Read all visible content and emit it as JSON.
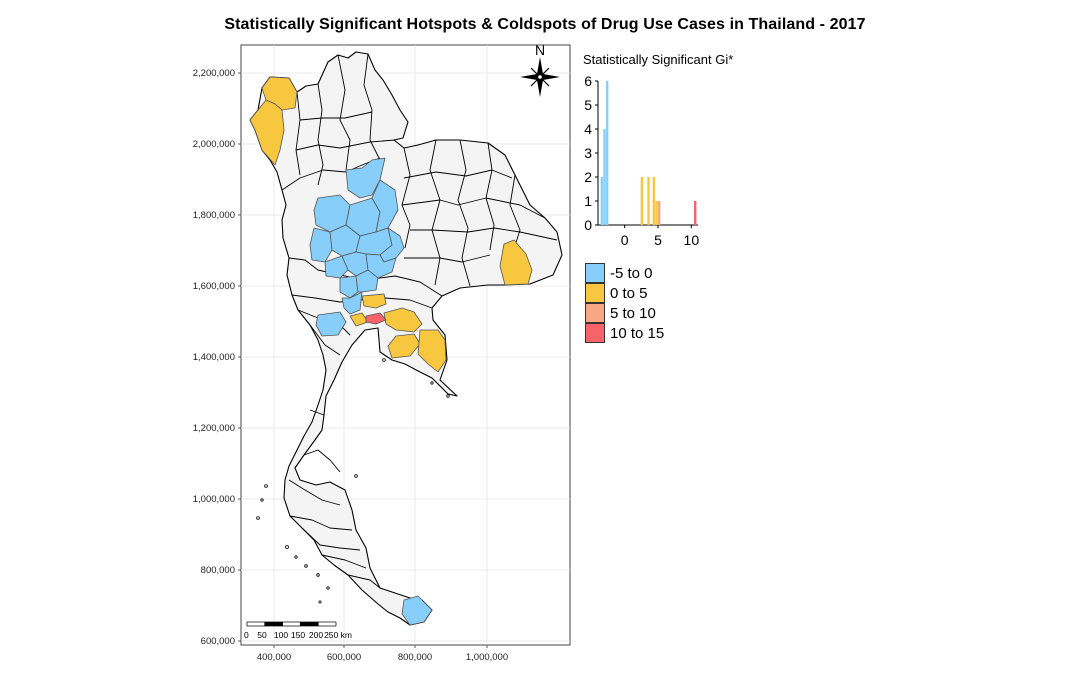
{
  "title": "Statistically Significant Hotspots & Coldspots of Drug Use Cases in Thailand - 2017",
  "map": {
    "y_ticks": [
      "2,200,000",
      "2,000,000",
      "1,800,000",
      "1,600,000",
      "1,400,000",
      "1,200,000",
      "1,000,000",
      "800,000",
      "600,000"
    ],
    "x_ticks": [
      "400,000",
      "600,000",
      "800,000",
      "1,000,000"
    ],
    "north_label": "N",
    "scale_bar": {
      "labels": [
        "0",
        "50",
        "100",
        "150",
        "200",
        "250 km"
      ]
    },
    "colors": {
      "land": "#f4f4f4",
      "border": "#000000",
      "grid": "#e4e4e4"
    },
    "highlighted_provinces": [
      {
        "category": "0 to 5",
        "count": 2,
        "area": "north-west"
      },
      {
        "category": "-5 to 0",
        "count": 14,
        "area": "central-north"
      },
      {
        "category": "0 to 5",
        "count": 1,
        "area": "north-east"
      },
      {
        "category": "0 to 5",
        "count": 5,
        "area": "central / east"
      },
      {
        "category": "10 to 15",
        "count": 1,
        "area": "central"
      },
      {
        "category": "-5 to 0",
        "count": 1,
        "area": "west-central"
      },
      {
        "category": "-5 to 0",
        "count": 1,
        "area": "south"
      }
    ]
  },
  "histogram": {
    "title": "Statistically Significant Gi*",
    "x_ticks": [
      "0",
      "5",
      "10"
    ],
    "y_ticks": [
      "0",
      "1",
      "2",
      "3",
      "4",
      "5",
      "6"
    ],
    "xlim": [
      -4,
      11
    ],
    "ylim": [
      0,
      6.2
    ]
  },
  "legend": [
    {
      "label": "-5 to 0",
      "color": "#87cefa"
    },
    {
      "label": "0 to 5",
      "color": "#f8c740"
    },
    {
      "label": "5 to 10",
      "color": "#f9a684"
    },
    {
      "label": "10 to 15",
      "color": "#f7656a"
    }
  ],
  "chart_data": {
    "type": "bar",
    "title": "Statistically Significant Gi*",
    "xlabel": "",
    "ylabel": "",
    "xlim": [
      -4,
      11
    ],
    "ylim": [
      0,
      6
    ],
    "bins": [
      {
        "x0": -3.6,
        "x1": -3.2,
        "count": 2,
        "category": "-5 to 0"
      },
      {
        "x0": -3.2,
        "x1": -2.8,
        "count": 4,
        "category": "-5 to 0"
      },
      {
        "x0": -2.8,
        "x1": -2.4,
        "count": 6,
        "category": "-5 to 0"
      },
      {
        "x0": 2.4,
        "x1": 2.8,
        "count": 2,
        "category": "0 to 5"
      },
      {
        "x0": 3.4,
        "x1": 3.8,
        "count": 2,
        "category": "0 to 5"
      },
      {
        "x0": 4.2,
        "x1": 4.6,
        "count": 2,
        "category": "0 to 5"
      },
      {
        "x0": 4.6,
        "x1": 5.0,
        "count": 1,
        "category": "0 to 5"
      },
      {
        "x0": 5.0,
        "x1": 5.4,
        "count": 1,
        "category": "5 to 10"
      },
      {
        "x0": 10.4,
        "x1": 10.8,
        "count": 1,
        "category": "10 to 15"
      }
    ]
  }
}
